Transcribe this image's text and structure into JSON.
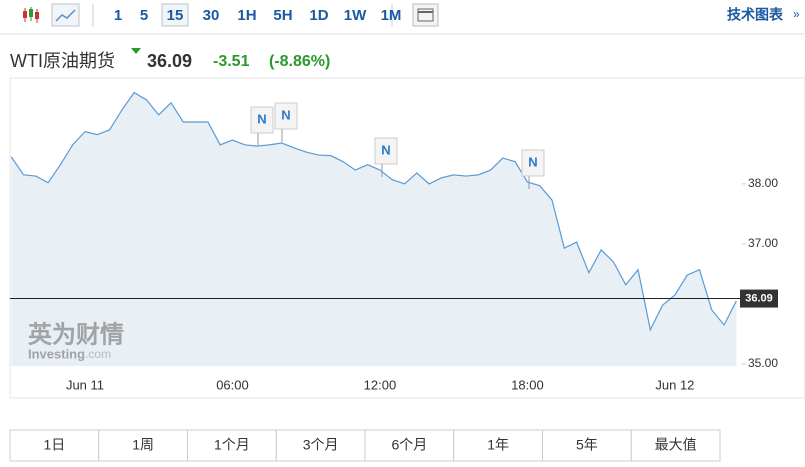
{
  "toolbar": {
    "intervals": [
      "1",
      "5",
      "15",
      "30",
      "1H",
      "5H",
      "1D",
      "1W",
      "1M"
    ],
    "selected_interval": "15",
    "link": "技术图表"
  },
  "chart_data": {
    "type": "area",
    "title": "WTI原油期货",
    "price": 36.09,
    "change": -3.51,
    "change_percent": {
      "value": -8.86,
      "label": "(-8.86%)"
    },
    "color": "#5b9bd5",
    "fill": "#e8eff5",
    "change_color": "#2a9a2a",
    "categories": [
      null,
      null,
      null,
      null,
      null,
      null,
      "Jun 11",
      null,
      null,
      null,
      null,
      null,
      null,
      null,
      null,
      null,
      null,
      null,
      "06:00",
      null,
      null,
      null,
      null,
      null,
      null,
      null,
      null,
      null,
      null,
      null,
      "12:00",
      null,
      null,
      null,
      null,
      null,
      null,
      null,
      null,
      null,
      null,
      null,
      "18:00",
      null,
      null,
      null,
      null,
      null,
      null,
      null,
      null,
      null,
      null,
      null,
      "Jun 12",
      null,
      null,
      null,
      null,
      null
    ],
    "values": [
      38.45,
      38.15,
      38.13,
      38.02,
      38.32,
      38.65,
      38.87,
      38.82,
      38.9,
      39.23,
      39.52,
      39.4,
      39.15,
      39.35,
      39.03,
      39.03,
      39.03,
      38.65,
      38.73,
      38.65,
      38.63,
      38.65,
      38.68,
      38.6,
      38.53,
      38.48,
      38.47,
      38.37,
      38.23,
      38.32,
      38.23,
      38.07,
      38.0,
      38.18,
      38.0,
      38.1,
      38.15,
      38.13,
      38.15,
      38.23,
      38.43,
      38.37,
      38.03,
      37.97,
      37.73,
      36.93,
      37.03,
      36.52,
      36.9,
      36.7,
      36.32,
      36.57,
      35.57,
      35.98,
      36.15,
      36.48,
      36.57,
      35.9,
      35.65,
      36.05
    ],
    "ylim": [
      35,
      39.73
    ],
    "yticks": [
      {
        "value": 35,
        "label": "35.00"
      },
      {
        "value": 37,
        "label": "37.00"
      },
      {
        "value": 38,
        "label": "38.00"
      }
    ],
    "annotations": [
      "N",
      "N",
      "N",
      "N"
    ],
    "watermark": [
      "英为财情",
      "Investing",
      ".com"
    ]
  },
  "ranges": [
    "1日",
    "1周",
    "1个月",
    "3个月",
    "6个月",
    "1年",
    "5年",
    "最大值"
  ]
}
